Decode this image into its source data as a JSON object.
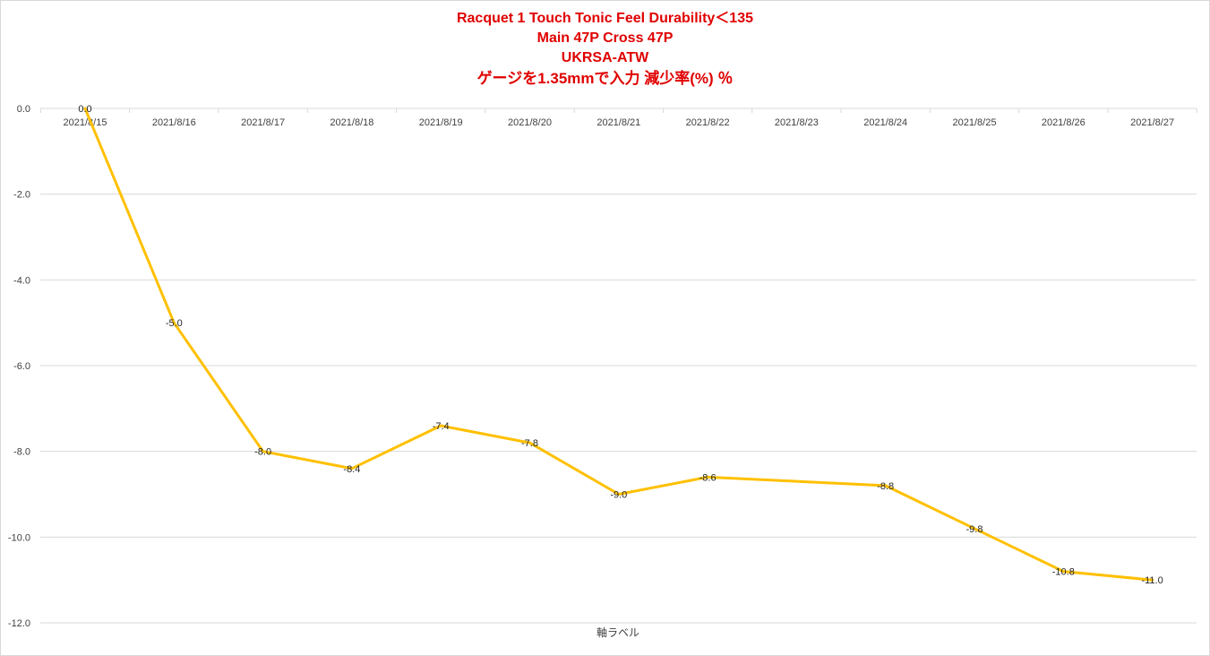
{
  "chart_data": {
    "type": "line",
    "title_lines": [
      "Racquet 1 Touch Tonic Feel Durability＜135",
      "Main 47P Cross 47P",
      "UKRSA-ATW",
      "ゲージを1.35mmで入力 減少率(%) ％"
    ],
    "xlabel": "軸ラベル",
    "ylabel": "",
    "categories": [
      "2021/8/15",
      "2021/8/16",
      "2021/8/17",
      "2021/8/18",
      "2021/8/19",
      "2021/8/20",
      "2021/8/21",
      "2021/8/22",
      "2021/8/23",
      "2021/8/24",
      "2021/8/25",
      "2021/8/26",
      "2021/8/27"
    ],
    "ylim": [
      -12,
      0
    ],
    "yticks": [
      "0.0",
      "-2.0",
      "-4.0",
      "-6.0",
      "-8.0",
      "-10.0",
      "-12.0"
    ],
    "series": [
      {
        "name": "",
        "color": "#ffc000",
        "values": [
          0.0,
          -5.0,
          -8.0,
          -8.4,
          -7.4,
          -7.8,
          -9.0,
          -8.6,
          null,
          -8.8,
          -9.8,
          -10.8,
          -11.0
        ],
        "labels": [
          "0.0",
          "-5.0",
          "-8.0",
          "-8.4",
          "-7.4",
          "-7.8",
          "-9.0",
          "-8.6",
          "",
          "-8.8",
          "-9.8",
          "-10.8",
          "-11.0"
        ]
      }
    ],
    "grid": true,
    "legend": "none"
  }
}
